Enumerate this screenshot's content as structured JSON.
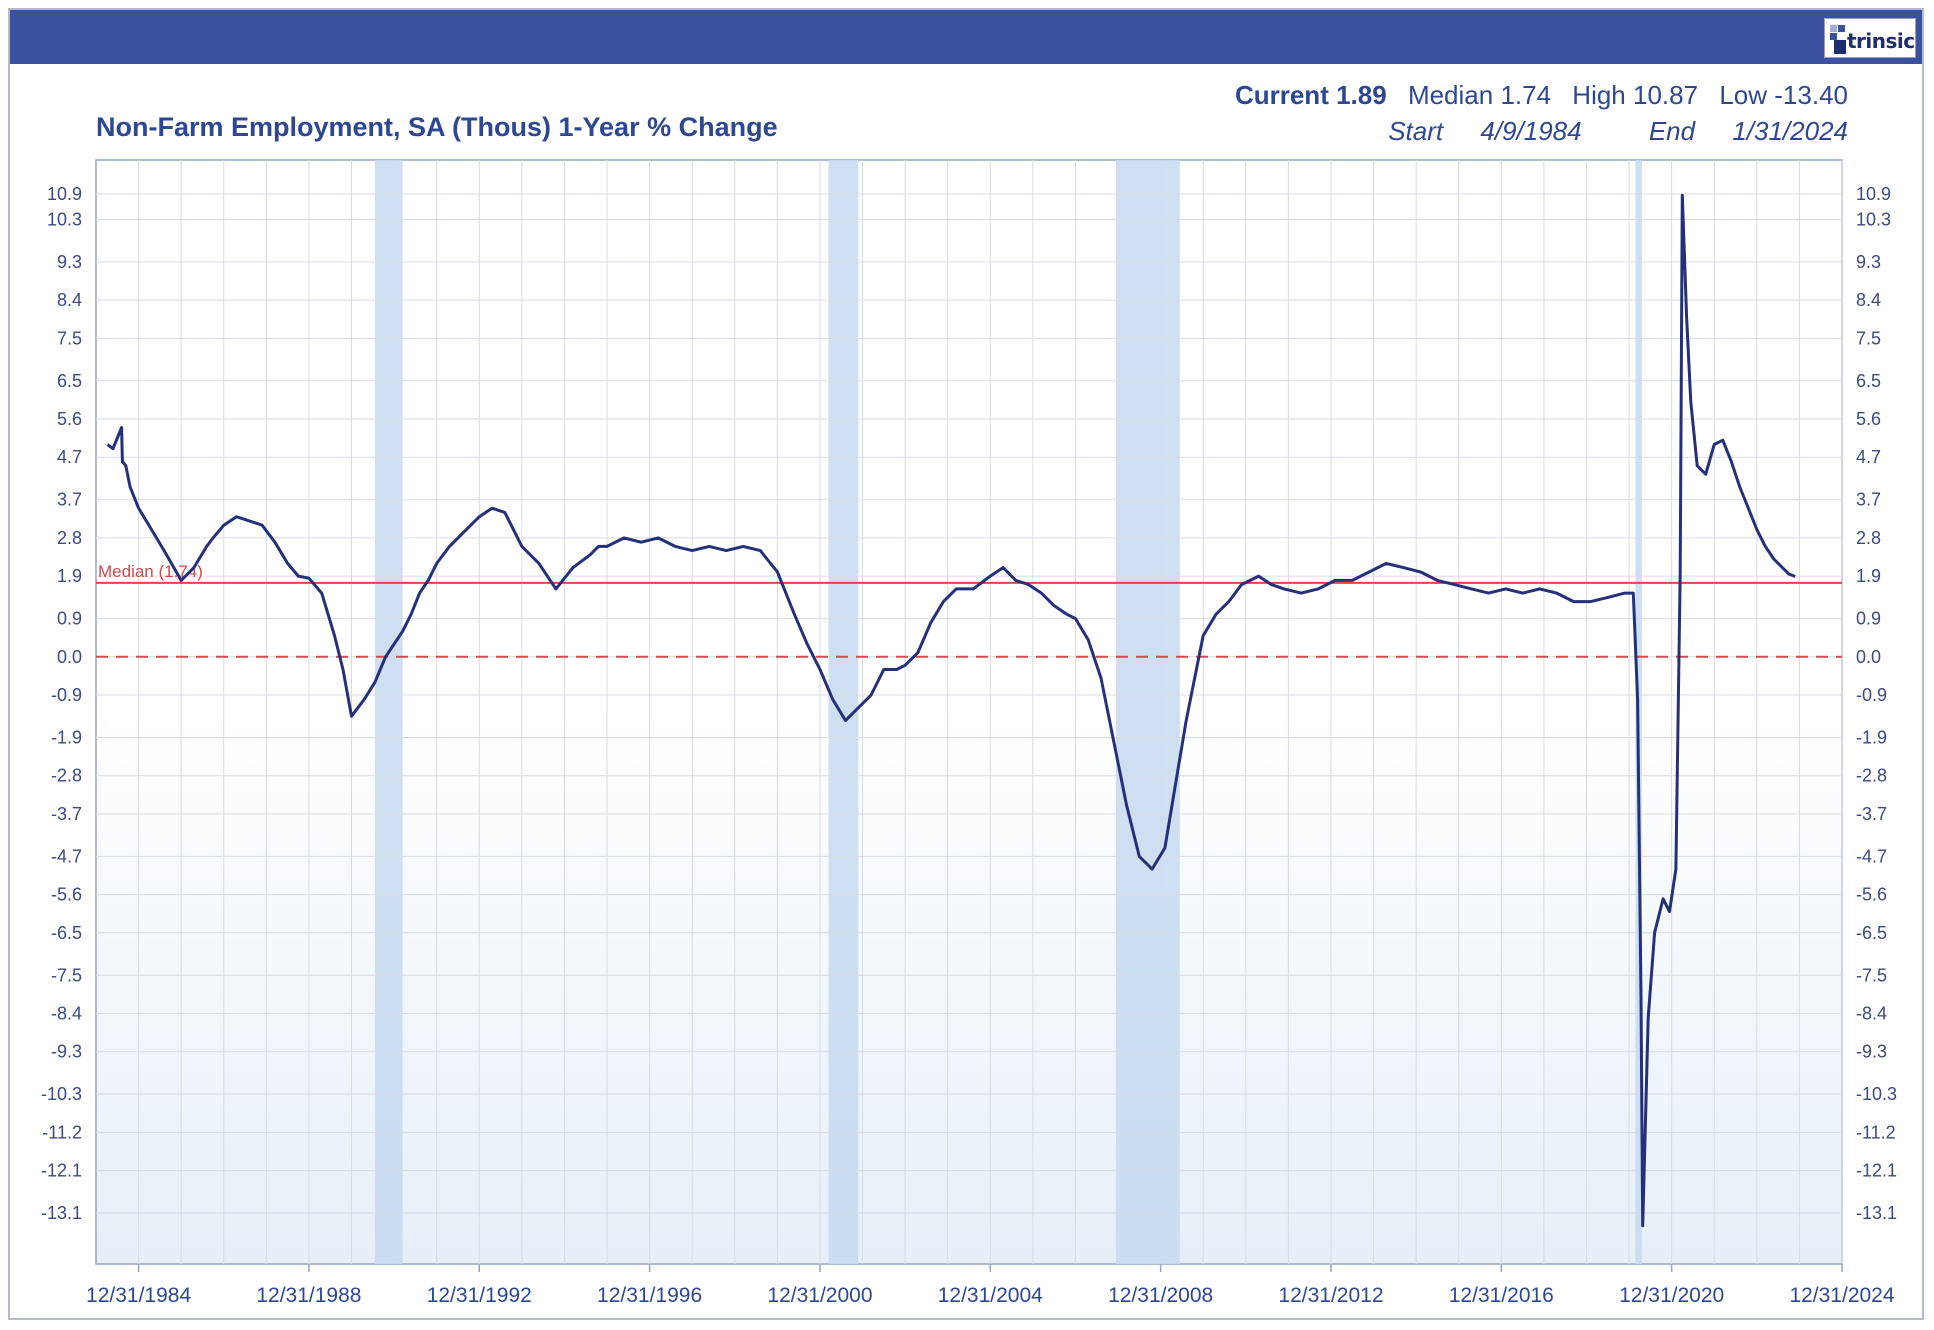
{
  "header": {
    "logo_text": "trinsic",
    "colors": {
      "bar": "#3a51a0",
      "series": "#24307a",
      "median": "#d24a4a",
      "recession": "#c8dcef"
    }
  },
  "stats": {
    "current_label": "Current",
    "current_value": "1.89",
    "median_label": "Median",
    "median_value": "1.74",
    "high_label": "High",
    "high_value": "10.87",
    "low_label": "Low",
    "low_value": "-13.40",
    "start_label": "Start",
    "start_value": "4/9/1984",
    "end_label": "End",
    "end_value": "1/31/2024"
  },
  "chart_data": {
    "type": "line",
    "title": "Non-Farm Employment, SA (Thous) 1-Year % Change",
    "median_label": "Median (1.74)",
    "median": 1.74,
    "zero_line": 0.0,
    "y_ticks": [
      10.9,
      10.3,
      9.3,
      8.4,
      7.5,
      6.5,
      5.6,
      4.7,
      3.7,
      2.8,
      1.9,
      0.9,
      0.0,
      -0.9,
      -1.9,
      -2.8,
      -3.7,
      -4.7,
      -5.6,
      -6.5,
      -7.5,
      -8.4,
      -9.3,
      -10.3,
      -11.2,
      -12.1,
      -13.1
    ],
    "y_tick_labels": [
      "10.9",
      "10.3",
      "9.3",
      "8.4",
      "7.5",
      "6.5",
      "5.6",
      "4.7",
      "3.7",
      "2.8",
      "1.9",
      "0.9",
      "0.0",
      "-0.9",
      "-1.9",
      "-2.8",
      "-3.7",
      "-4.7",
      "-5.6",
      "-6.5",
      "-7.5",
      "-8.4",
      "-9.3",
      "-10.3",
      "-11.2",
      "-12.1",
      "-13.1"
    ],
    "x_tick_years": [
      1985,
      1989,
      1993,
      1997,
      2001,
      2005,
      2009,
      2013,
      2017,
      2021,
      2025
    ],
    "x_tick_labels": [
      "12/31/1984",
      "12/31/1988",
      "12/31/1992",
      "12/31/1996",
      "12/31/2000",
      "12/31/2004",
      "12/31/2008",
      "12/31/2012",
      "12/31/2016",
      "12/31/2020",
      "12/31/2024"
    ],
    "grid": true,
    "recessions": [
      [
        1990.55,
        1991.2
      ],
      [
        2001.2,
        2001.9
      ],
      [
        2007.95,
        2009.45
      ],
      [
        2020.15,
        2020.3
      ]
    ],
    "series": [
      {
        "x": [
          1984.27,
          1984.4,
          1984.6,
          1984.62,
          1984.7,
          1984.8,
          1985.0,
          1985.3,
          1985.6,
          1986.0,
          1986.3,
          1986.6,
          1986.75,
          1987.0,
          1987.3,
          1987.6,
          1987.9,
          1988.2,
          1988.5,
          1988.75,
          1989.0,
          1989.3,
          1989.6,
          1989.8,
          1990.0,
          1990.3,
          1990.55,
          1990.8,
          1991.0,
          1991.2,
          1991.4,
          1991.6,
          1991.8,
          1992.0,
          1992.3,
          1992.6,
          1993.0,
          1993.3,
          1993.6,
          1994.0,
          1994.4,
          1994.8,
          1995.2,
          1995.6,
          1995.8,
          1996.0,
          1996.4,
          1996.8,
          1997.2,
          1997.6,
          1998.0,
          1998.4,
          1998.8,
          1999.2,
          1999.6,
          2000.0,
          2000.4,
          2000.7,
          2001.0,
          2001.3,
          2001.6,
          2001.9,
          2002.2,
          2002.5,
          2002.8,
          2003.0,
          2003.3,
          2003.6,
          2003.9,
          2004.2,
          2004.6,
          2005.0,
          2005.3,
          2005.6,
          2005.9,
          2006.2,
          2006.5,
          2006.8,
          2007.0,
          2007.3,
          2007.6,
          2007.9,
          2008.2,
          2008.5,
          2008.8,
          2009.1,
          2009.35,
          2009.6,
          2009.8,
          2010.0,
          2010.3,
          2010.6,
          2010.9,
          2011.3,
          2011.6,
          2011.9,
          2012.3,
          2012.7,
          2013.1,
          2013.5,
          2013.9,
          2014.3,
          2014.7,
          2015.1,
          2015.5,
          2015.9,
          2016.3,
          2016.7,
          2017.1,
          2017.5,
          2017.9,
          2018.3,
          2018.7,
          2019.1,
          2019.5,
          2019.9,
          2020.1,
          2020.2,
          2020.28,
          2020.32,
          2020.45,
          2020.6,
          2020.8,
          2020.95,
          2021.1,
          2021.2,
          2021.25,
          2021.35,
          2021.45,
          2021.6,
          2021.8,
          2022.0,
          2022.2,
          2022.4,
          2022.6,
          2022.8,
          2023.0,
          2023.2,
          2023.4,
          2023.6,
          2023.75,
          2023.9
        ],
        "y": [
          5.0,
          4.9,
          5.4,
          4.6,
          4.5,
          4.0,
          3.5,
          3.0,
          2.5,
          1.8,
          2.1,
          2.6,
          2.8,
          3.1,
          3.3,
          3.2,
          3.1,
          2.7,
          2.2,
          1.9,
          1.85,
          1.5,
          0.5,
          -0.3,
          -1.4,
          -1.0,
          -0.6,
          0.0,
          0.3,
          0.6,
          1.0,
          1.5,
          1.8,
          2.2,
          2.6,
          2.9,
          3.3,
          3.5,
          3.4,
          2.6,
          2.2,
          1.6,
          2.1,
          2.4,
          2.6,
          2.6,
          2.8,
          2.7,
          2.8,
          2.6,
          2.5,
          2.6,
          2.5,
          2.6,
          2.5,
          2.0,
          1.0,
          0.3,
          -0.3,
          -1.0,
          -1.5,
          -1.2,
          -0.9,
          -0.3,
          -0.3,
          -0.2,
          0.1,
          0.8,
          1.3,
          1.6,
          1.6,
          1.9,
          2.1,
          1.8,
          1.7,
          1.5,
          1.2,
          1.0,
          0.9,
          0.4,
          -0.5,
          -2.0,
          -3.5,
          -4.7,
          -5.0,
          -4.5,
          -3.0,
          -1.5,
          -0.5,
          0.5,
          1.0,
          1.3,
          1.7,
          1.9,
          1.7,
          1.6,
          1.5,
          1.6,
          1.8,
          1.8,
          2.0,
          2.2,
          2.1,
          2.0,
          1.8,
          1.7,
          1.6,
          1.5,
          1.6,
          1.5,
          1.6,
          1.5,
          1.3,
          1.3,
          1.4,
          1.5,
          1.5,
          -1.0,
          -8.0,
          -13.4,
          -8.5,
          -6.5,
          -5.7,
          -6.0,
          -5.0,
          2.0,
          10.87,
          8.0,
          6.0,
          4.5,
          4.3,
          5.0,
          5.1,
          4.6,
          4.0,
          3.5,
          3.0,
          2.6,
          2.3,
          2.1,
          1.95,
          1.89
        ]
      }
    ]
  }
}
